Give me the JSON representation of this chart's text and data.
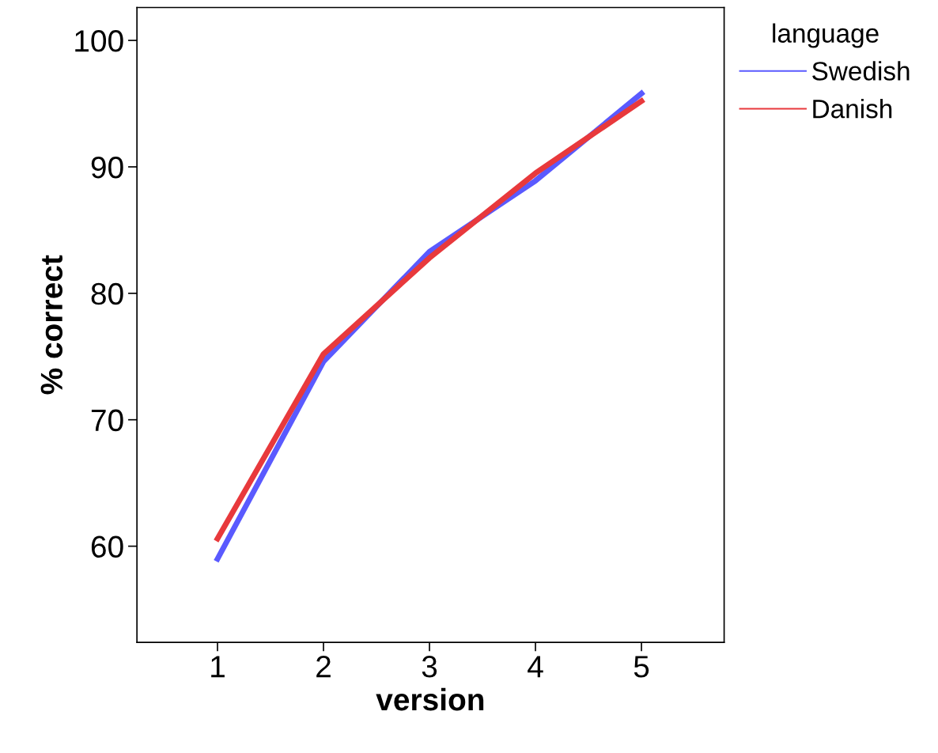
{
  "chart_data": {
    "type": "line",
    "xlabel": "version",
    "ylabel": "% correct",
    "legend_title": "language",
    "x": [
      1,
      2,
      3,
      4,
      5
    ],
    "series": [
      {
        "name": "Swedish",
        "color": "#5a5aff",
        "values": [
          59.0,
          74.6,
          83.3,
          88.9,
          95.8
        ]
      },
      {
        "name": "Danish",
        "color": "#e8393c",
        "values": [
          60.6,
          75.2,
          82.8,
          89.5,
          95.2
        ]
      }
    ],
    "xlim": [
      0.24,
      5.78
    ],
    "xticks": [
      1,
      2,
      3,
      4,
      5
    ],
    "ylim": [
      52.4,
      102.6
    ],
    "yticks": [
      60,
      70,
      80,
      90,
      100
    ],
    "grid": false,
    "legend": "top right",
    "marker": "none",
    "line_style": "solid"
  }
}
